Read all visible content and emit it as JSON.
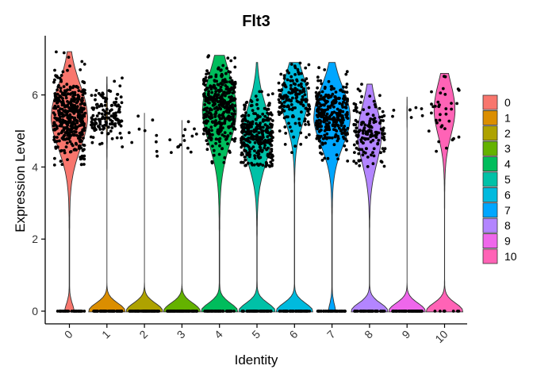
{
  "chart_data": {
    "type": "violin",
    "title": "Flt3",
    "xlabel": "Identity",
    "ylabel": "Expression Level",
    "categories": [
      "0",
      "1",
      "2",
      "3",
      "4",
      "5",
      "6",
      "7",
      "8",
      "9",
      "10"
    ],
    "yticks": [
      0,
      2,
      4,
      6
    ],
    "ylim": [
      -0.25,
      7.6
    ],
    "legend_position": "right",
    "colors": [
      "#F8766D",
      "#DB8E00",
      "#AEA200",
      "#64B200",
      "#00BD5C",
      "#00C1A7",
      "#00BADE",
      "#00A6FF",
      "#B385FF",
      "#EF67EB",
      "#FF63B6"
    ],
    "groups": [
      {
        "name": "0",
        "max": 7.2,
        "zero_frac": 0.06,
        "n_pos": 420,
        "pos_mean": 5.4,
        "pos_sd": 0.55,
        "nz_n": 30
      },
      {
        "name": "1",
        "max": 6.5,
        "zero_frac": 0.92,
        "n_pos": 140,
        "pos_mean": 5.4,
        "pos_sd": 0.4,
        "nz_n": 60
      },
      {
        "name": "2",
        "max": 5.5,
        "zero_frac": 0.995,
        "n_pos": 10,
        "pos_mean": 4.9,
        "pos_sd": 0.35,
        "nz_n": 70
      },
      {
        "name": "3",
        "max": 5.3,
        "zero_frac": 0.995,
        "n_pos": 14,
        "pos_mean": 4.8,
        "pos_sd": 0.35,
        "nz_n": 70
      },
      {
        "name": "4",
        "max": 7.1,
        "zero_frac": 0.2,
        "n_pos": 380,
        "pos_mean": 5.6,
        "pos_sd": 0.6,
        "nz_n": 50
      },
      {
        "name": "5",
        "max": 6.9,
        "zero_frac": 0.26,
        "n_pos": 300,
        "pos_mean": 4.9,
        "pos_sd": 0.5,
        "nz_n": 50
      },
      {
        "name": "6",
        "max": 6.9,
        "zero_frac": 0.3,
        "n_pos": 160,
        "pos_mean": 5.9,
        "pos_sd": 0.45,
        "nz_n": 50
      },
      {
        "name": "7",
        "max": 6.9,
        "zero_frac": 0.05,
        "n_pos": 300,
        "pos_mean": 5.4,
        "pos_sd": 0.5,
        "nz_n": 40
      },
      {
        "name": "8",
        "max": 6.3,
        "zero_frac": 0.3,
        "n_pos": 150,
        "pos_mean": 4.9,
        "pos_sd": 0.5,
        "nz_n": 50
      },
      {
        "name": "9",
        "max": 5.95,
        "zero_frac": 0.99,
        "n_pos": 8,
        "pos_mean": 5.5,
        "pos_sd": 0.15,
        "nz_n": 70
      },
      {
        "name": "10",
        "max": 6.6,
        "zero_frac": 0.35,
        "n_pos": 35,
        "pos_mean": 5.6,
        "pos_sd": 0.45,
        "nz_n": 8
      }
    ]
  }
}
